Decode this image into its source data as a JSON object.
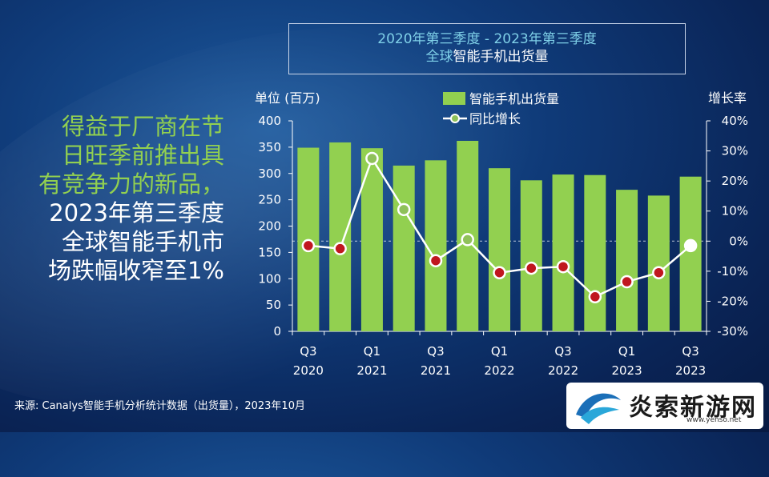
{
  "headline": {
    "green_lines": [
      "得益于厂商在节",
      "日旺季前推出具",
      "有竞争力的新品，"
    ],
    "white_lines": [
      "2023年第三季度",
      "全球智能手机市",
      "场跌幅收窄至1%"
    ]
  },
  "title": {
    "line1": "2020年第三季度 - 2023年第三季度",
    "line2_highlight": "全球",
    "line2_rest": "智能手机出货量"
  },
  "source": "来源: Canalys智能手机分析统计数据（出货量），2023年10月",
  "logo": {
    "text": "炎索新游网",
    "url": "www.yenso.net"
  },
  "colors": {
    "bar": "#92d050",
    "line": "#ffffff",
    "marker": "#c0171f",
    "marker_last": "#ffffff"
  },
  "chart_data": {
    "type": "bar",
    "categories_top": [
      "Q3",
      "",
      "Q1",
      "",
      "Q3",
      "",
      "Q1",
      "",
      "Q3",
      "",
      "Q1",
      "",
      "Q3"
    ],
    "categories_bottom": [
      "2020",
      "",
      "2021",
      "",
      "2021",
      "",
      "2022",
      "",
      "2022",
      "",
      "2023",
      "",
      "2023"
    ],
    "series": [
      {
        "name": "智能手机出货量",
        "axis": "left",
        "values": [
          349,
          359,
          348,
          315,
          325,
          362,
          310,
          287,
          298,
          297,
          269,
          258,
          294
        ]
      },
      {
        "name": "同比增长",
        "axis": "right",
        "type": "line",
        "values": [
          -1.5,
          -2.5,
          27.5,
          10.5,
          -6.5,
          0.5,
          -10.5,
          -9,
          -8.5,
          -18.5,
          -13.5,
          -10.5,
          -1.5
        ]
      }
    ],
    "ylabel_left": "单位 (百万)",
    "ylabel_right": "增长率",
    "ylim_left": [
      0,
      400
    ],
    "yticks_left": [
      "0",
      "50",
      "100",
      "150",
      "200",
      "250",
      "300",
      "350",
      "400"
    ],
    "ylim_right": [
      -30,
      40
    ],
    "yticks_right": [
      "-30%",
      "-20%",
      "-10%",
      "0%",
      "10%",
      "20%",
      "30%",
      "40%"
    ],
    "legend": [
      "智能手机出货量",
      "同比增长"
    ],
    "zero_line": "dashed"
  }
}
